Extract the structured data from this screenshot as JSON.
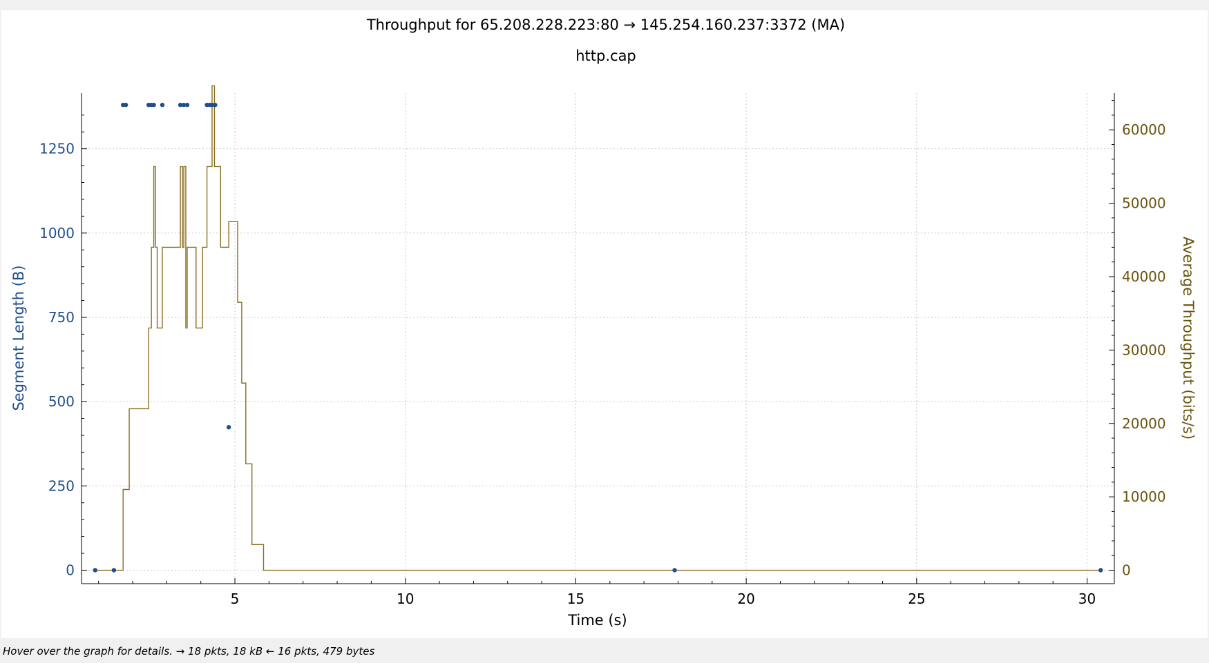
{
  "title": "Throughput for 65.208.228.223:80 → 145.254.160.237:3372 (MA)",
  "subtitle": "http.cap",
  "status": "Hover over the graph for details. → 18 pkts, 18 kB ← 16 pkts, 479 bytes",
  "colors": {
    "segment": "#1f4e8c",
    "throughput": "#8a6d1f",
    "grid": "#c8c8c8",
    "axis": "#000000"
  },
  "chart_data": {
    "type": "scatter",
    "xlabel": "Time (s)",
    "ylabel": "Segment Length (B)",
    "y2label": "Average Throughput (bits/s)",
    "xlim": [
      0.5,
      30.8
    ],
    "ylim": [
      -40,
      1415
    ],
    "y2lim": [
      -1830,
      65000
    ],
    "x_ticks": [
      5,
      10,
      15,
      20,
      25,
      30
    ],
    "y_ticks": [
      0,
      250,
      500,
      750,
      1000,
      1250
    ],
    "y2_ticks": [
      0,
      10000,
      20000,
      30000,
      40000,
      50000,
      60000
    ],
    "grid": true,
    "series": [
      {
        "name": "Segment Length",
        "axis": "left",
        "style": "points",
        "x": [
          0.9,
          1.45,
          1.72,
          1.8,
          2.47,
          2.55,
          2.62,
          2.87,
          3.4,
          3.5,
          3.6,
          4.18,
          4.26,
          4.33,
          4.42,
          4.82,
          17.9,
          30.4
        ],
        "y": [
          0,
          0,
          1380,
          1380,
          1380,
          1380,
          1380,
          1380,
          1380,
          1380,
          1380,
          1380,
          1380,
          1380,
          1380,
          424,
          0,
          0
        ]
      },
      {
        "name": "Average Throughput",
        "axis": "right",
        "style": "step",
        "x": [
          0.9,
          1.72,
          1.8,
          1.9,
          2.47,
          2.55,
          2.62,
          2.67,
          2.72,
          2.87,
          2.95,
          3.4,
          3.46,
          3.5,
          3.56,
          3.6,
          3.63,
          3.86,
          4.05,
          4.18,
          4.26,
          4.33,
          4.4,
          4.45,
          4.58,
          4.82,
          5.08,
          5.2,
          5.32,
          5.5,
          5.84,
          30.4
        ],
        "y": [
          0,
          11000,
          11000,
          22000,
          33000,
          44000,
          55000,
          44000,
          33000,
          44000,
          44000,
          55000,
          44000,
          55000,
          33000,
          44000,
          44000,
          33000,
          44000,
          55000,
          55000,
          66000,
          55000,
          55000,
          44000,
          47500,
          36500,
          25500,
          14500,
          3500,
          0,
          0
        ]
      }
    ]
  }
}
